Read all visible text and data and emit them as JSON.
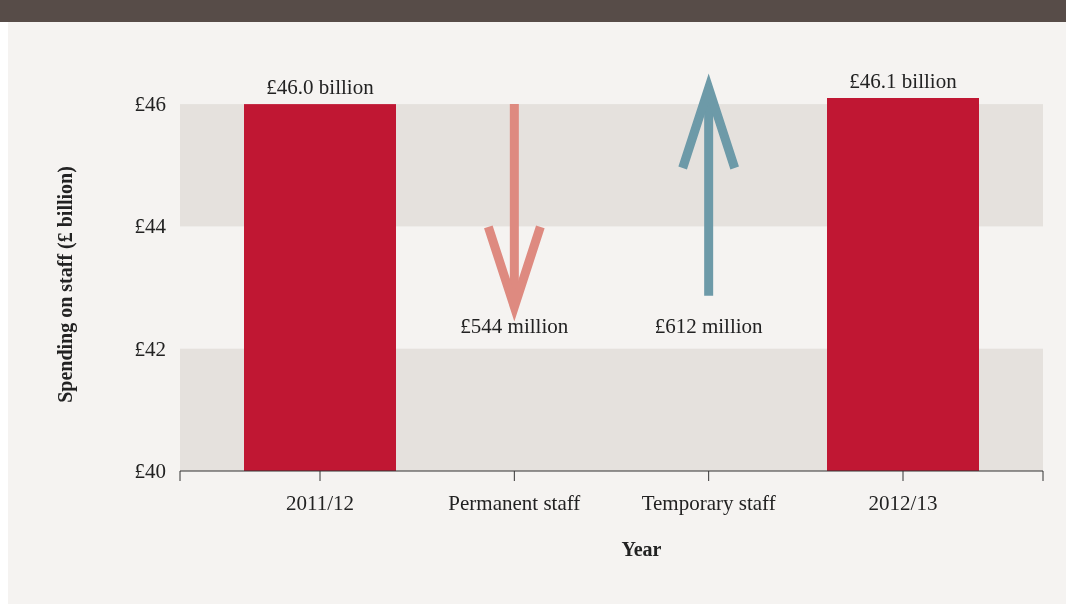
{
  "chart_data": {
    "type": "bar",
    "xlabel": "Year",
    "ylabel": "Spending on staff (£ billion)",
    "categories": [
      "2011/12",
      "Permanent staff",
      "Temporary staff",
      "2012/13"
    ],
    "values": [
      46.0,
      null,
      null,
      46.1
    ],
    "color": "#c01733",
    "value_labels": [
      "£46.0 billion",
      null,
      null,
      "£46.1 billion"
    ],
    "ylim": [
      40,
      46.1
    ],
    "yticks": [
      {
        "value": 40,
        "label": "£40"
      },
      {
        "value": 42,
        "label": "£42"
      },
      {
        "value": 44,
        "label": "£44"
      },
      {
        "value": 46,
        "label": "£46"
      }
    ],
    "bands": [
      {
        "axis": "y",
        "from": 40,
        "to": 42,
        "color": "#e5e1dd"
      },
      {
        "axis": "y",
        "from": 44,
        "to": 46,
        "color": "#e5e1dd"
      }
    ],
    "annotations": [
      "£544 million",
      "£612 million"
    ]
  }
}
